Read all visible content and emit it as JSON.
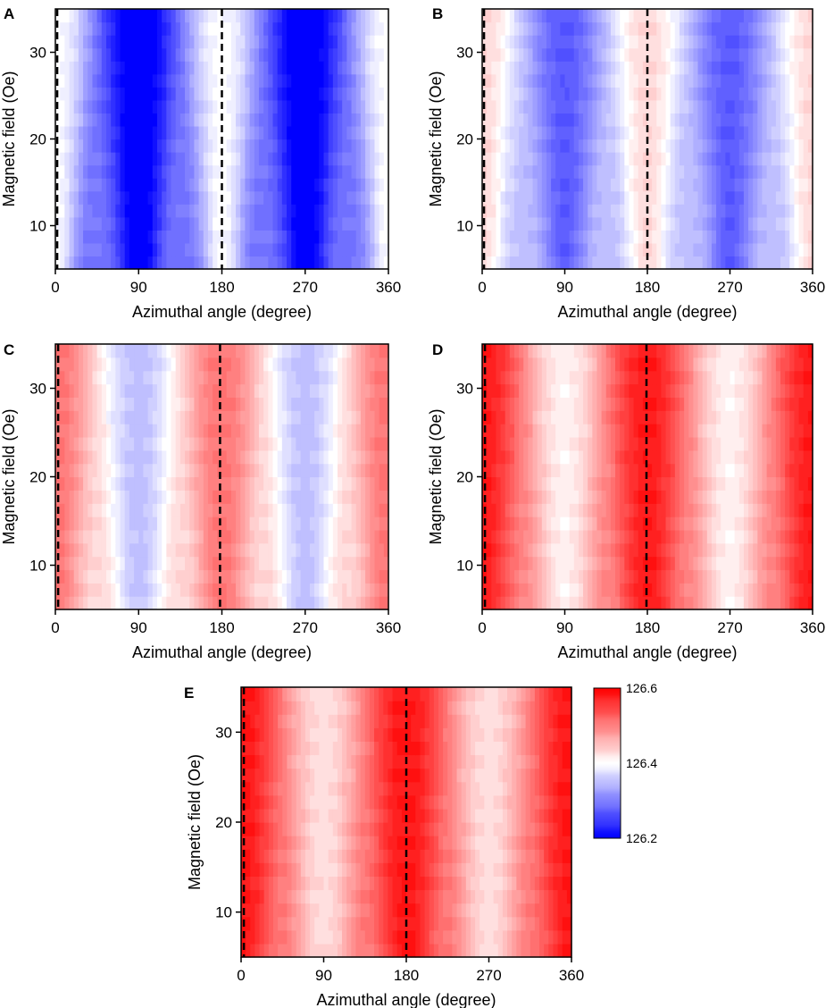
{
  "chart_data": [
    {
      "panel": "A",
      "type": "heatmap",
      "xlabel": "Azimuthal angle (degree)",
      "ylabel": "Magnetic field (Oe)",
      "xlim": [
        0,
        360
      ],
      "ylim": [
        5,
        35
      ],
      "xticks": [
        "0",
        "90",
        "180",
        "270",
        "360"
      ],
      "yticks": [
        "10",
        "20",
        "30"
      ],
      "dashed_lines_x": [
        2,
        180
      ],
      "mean": 126.29,
      "amplitude": 0.11,
      "min_deg": 100,
      "widen_at_low_field": 0.9,
      "max_deg": 180,
      "value_range": [
        126.2,
        126.6
      ]
    },
    {
      "panel": "B",
      "type": "heatmap",
      "xlabel": "Azimuthal angle (degree)",
      "ylabel": "Magnetic field (Oe)",
      "xlim": [
        0,
        360
      ],
      "ylim": [
        5,
        35
      ],
      "xticks": [
        "0",
        "90",
        "180",
        "270",
        "360"
      ],
      "yticks": [
        "10",
        "20",
        "30"
      ],
      "dashed_lines_x": [
        2,
        180
      ],
      "mean": 126.35,
      "amplitude": 0.08,
      "min_deg": 90,
      "widen_at_low_field": 0.8,
      "max_deg": 180,
      "value_range": [
        126.2,
        126.6
      ]
    },
    {
      "panel": "C",
      "type": "heatmap",
      "xlabel": "Azimuthal angle (degree)",
      "ylabel": "Magnetic field (Oe)",
      "xlim": [
        0,
        360
      ],
      "ylim": [
        5,
        35
      ],
      "xticks": [
        "0",
        "90",
        "180",
        "270",
        "360"
      ],
      "yticks": [
        "10",
        "20",
        "30"
      ],
      "dashed_lines_x": [
        3,
        178
      ],
      "mean": 126.43,
      "amplitude": 0.08,
      "min_deg": 90,
      "widen_at_low_field": 0.5,
      "max_deg": 180,
      "value_range": [
        126.2,
        126.6
      ]
    },
    {
      "panel": "D",
      "type": "heatmap",
      "xlabel": "Azimuthal angle (degree)",
      "ylabel": "Magnetic field (Oe)",
      "xlim": [
        0,
        360
      ],
      "ylim": [
        5,
        35
      ],
      "xticks": [
        "0",
        "90",
        "180",
        "270",
        "360"
      ],
      "yticks": [
        "10",
        "20",
        "30"
      ],
      "dashed_lines_x": [
        3,
        179
      ],
      "mean": 126.495,
      "amplitude": 0.085,
      "min_deg": 95,
      "widen_at_low_field": 0.3,
      "max_deg": 180,
      "value_range": [
        126.2,
        126.6
      ]
    },
    {
      "panel": "E",
      "type": "heatmap",
      "xlabel": "Azimuthal angle (degree)",
      "ylabel": "Magnetic field (Oe)",
      "xlim": [
        0,
        360
      ],
      "ylim": [
        5,
        35
      ],
      "xticks": [
        "0",
        "90",
        "180",
        "270",
        "360"
      ],
      "yticks": [
        "10",
        "20",
        "30"
      ],
      "dashed_lines_x": [
        3,
        180
      ],
      "mean": 126.505,
      "amplitude": 0.08,
      "min_deg": 95,
      "widen_at_low_field": 0.3,
      "max_deg": 180,
      "value_range": [
        126.2,
        126.6
      ]
    }
  ],
  "colorbar": {
    "labels": [
      "126.6",
      "126.4",
      "126.2"
    ],
    "values": [
      126.6,
      126.4,
      126.2
    ],
    "colors": {
      "high": "#ff0000",
      "mid": "#ffffff",
      "low": "#0000ff"
    }
  }
}
